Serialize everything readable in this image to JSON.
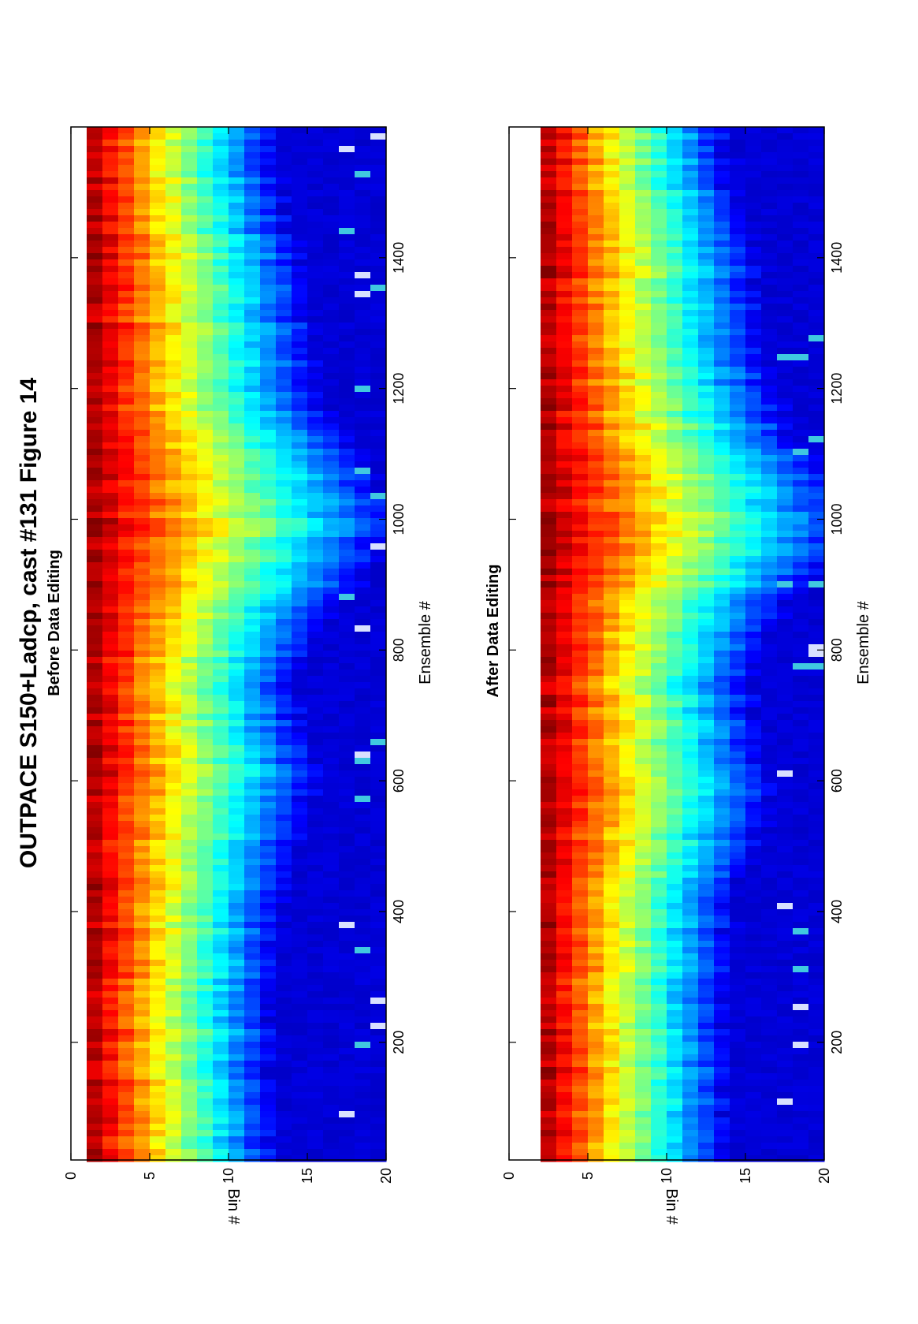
{
  "figure": {
    "title": "OUTPACE S150+Ladcp, cast #131  Figure 14"
  },
  "chart_data": [
    {
      "type": "heatmap",
      "title": "Before Data Editing",
      "xlabel": "Ensemble #",
      "ylabel": "Bin #",
      "xlim": [
        20,
        1600
      ],
      "ylim": [
        0,
        20
      ],
      "xticks": [
        200,
        400,
        600,
        800,
        1000,
        1200,
        1400
      ],
      "yticks": [
        0,
        5,
        10,
        15,
        20
      ],
      "y_reversed": true,
      "bins": 20,
      "first_valid_bin": 1,
      "colormap": "jet",
      "grid": false
    },
    {
      "type": "heatmap",
      "title": "After Data Editing",
      "xlabel": "Ensemble #",
      "ylabel": "Bin #",
      "xlim": [
        20,
        1600
      ],
      "ylim": [
        0,
        20
      ],
      "xticks": [
        200,
        400,
        600,
        800,
        1000,
        1200,
        1400
      ],
      "yticks": [
        0,
        5,
        10,
        15,
        20
      ],
      "y_reversed": true,
      "bins": 20,
      "first_valid_bin": 2,
      "colormap": "jet",
      "grid": false
    }
  ]
}
